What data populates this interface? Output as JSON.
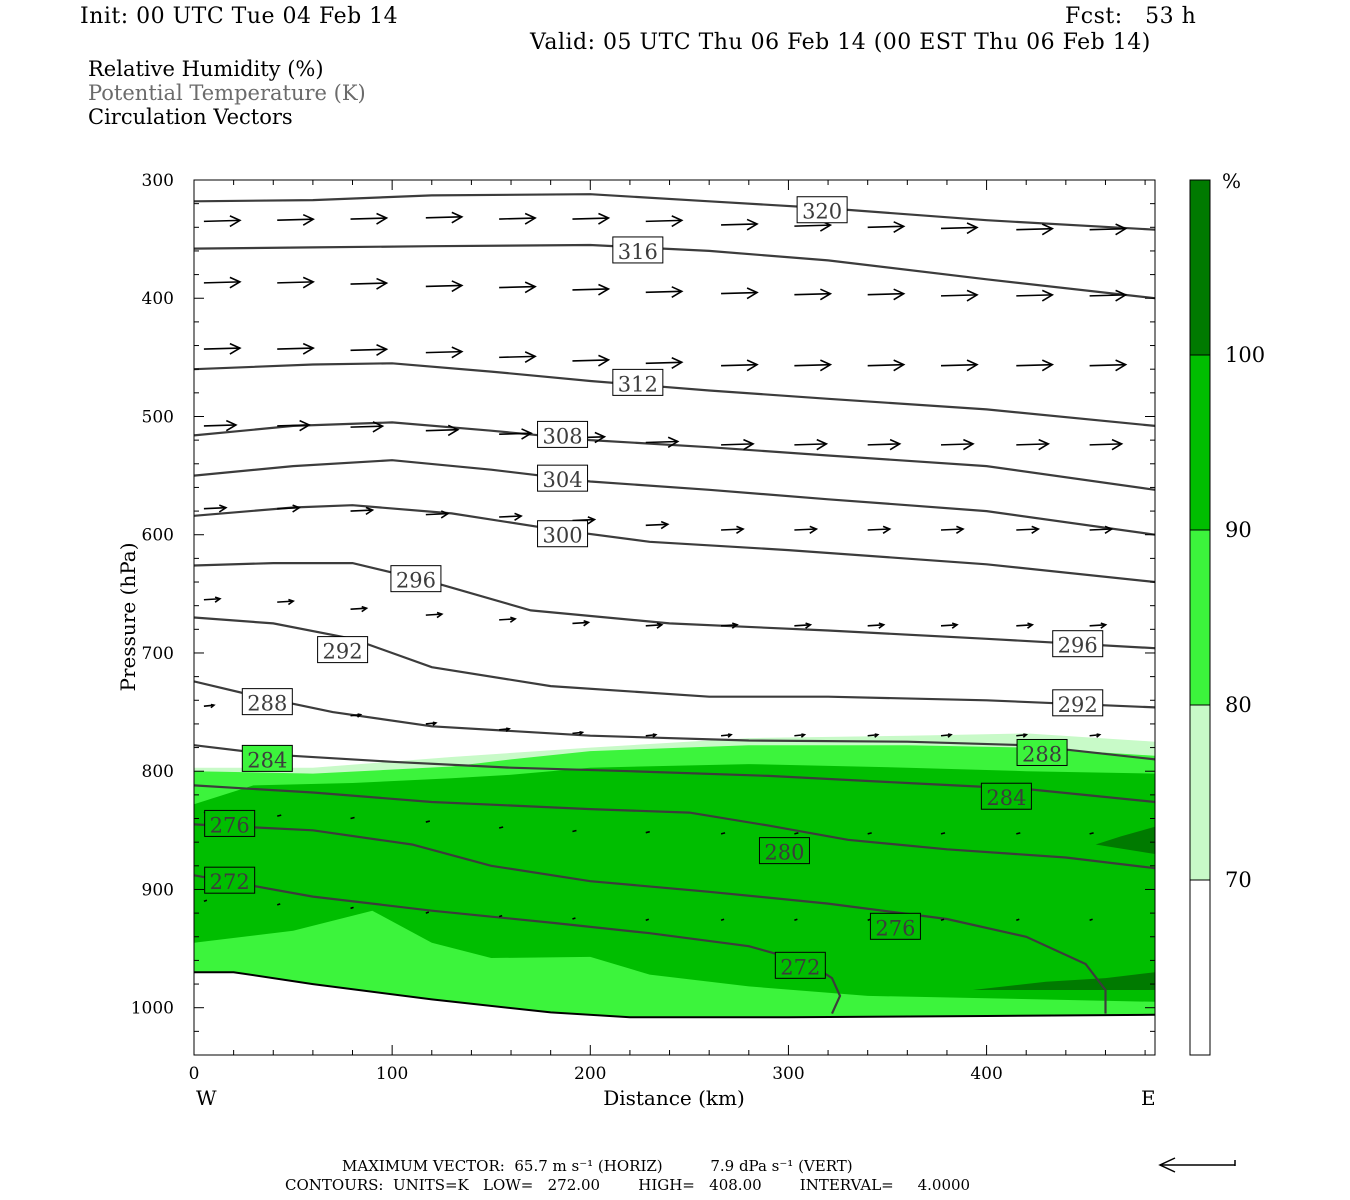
{
  "header": {
    "init": "Init: 00 UTC Tue 04 Feb 14",
    "fcst": "Fcst:   53 h",
    "valid": "Valid: 05 UTC Thu 06 Feb 14 (00 EST Thu 06 Feb 14)"
  },
  "fields": {
    "rh": "Relative Humidity (%)",
    "theta": "Potential Temperature (K)",
    "vectors": "Circulation Vectors"
  },
  "colors": {
    "rh_70": "#c8fac8",
    "rh_80": "#3cf43c",
    "rh_90": "#00be00",
    "rh_100": "#007a00",
    "contour": "#3c3c3c",
    "terrain": "#000000"
  },
  "chart_data": {
    "type": "cross-section",
    "xlabel": "Distance (km)",
    "ylabel": "Pressure (hPa)",
    "xlim": [
      0,
      485
    ],
    "ylim": [
      300,
      1040
    ],
    "y_scale": "linear, inverted",
    "x_ticks": [
      "0",
      "100",
      "200",
      "300",
      "400"
    ],
    "x_tick_values": [
      0,
      100,
      200,
      300,
      400
    ],
    "y_ticks": [
      "300",
      "400",
      "500",
      "600",
      "700",
      "800",
      "900",
      "1000"
    ],
    "y_tick_values": [
      300,
      400,
      500,
      600,
      700,
      800,
      900,
      1000
    ],
    "west_label": "W",
    "east_label": "E",
    "colorbar": {
      "unit": "%",
      "levels": [
        70,
        80,
        90,
        100
      ],
      "labels": [
        "70",
        "80",
        "90",
        "100"
      ]
    },
    "rh_fill": [
      {
        "level": 70,
        "upper": [
          [
            0,
            797
          ],
          [
            60,
            797
          ],
          [
            130,
            788
          ],
          [
            200,
            780
          ],
          [
            280,
            772
          ],
          [
            360,
            770
          ],
          [
            420,
            768
          ],
          [
            485,
            775
          ]
        ]
      },
      {
        "level": 80,
        "upper": [
          [
            0,
            800
          ],
          [
            60,
            802
          ],
          [
            130,
            796
          ],
          [
            160,
            790
          ],
          [
            200,
            783
          ],
          [
            280,
            778
          ],
          [
            360,
            778
          ],
          [
            420,
            780
          ],
          [
            485,
            787
          ]
        ]
      },
      {
        "level": 90,
        "upper": [
          [
            0,
            828
          ],
          [
            30,
            812
          ],
          [
            80,
            810
          ],
          [
            130,
            806
          ],
          [
            160,
            803
          ],
          [
            200,
            797
          ],
          [
            280,
            794
          ],
          [
            360,
            797
          ],
          [
            420,
            800
          ],
          [
            485,
            802
          ]
        ],
        "lower": [
          [
            0,
            945
          ],
          [
            50,
            935
          ],
          [
            90,
            918
          ],
          [
            120,
            945
          ],
          [
            150,
            958
          ],
          [
            200,
            957
          ],
          [
            230,
            972
          ],
          [
            280,
            982
          ],
          [
            340,
            990
          ],
          [
            400,
            992
          ],
          [
            485,
            995
          ]
        ]
      },
      {
        "level": 100,
        "patches": [
          [
            [
              455,
              862
            ],
            [
              468,
              855
            ],
            [
              485,
              847
            ],
            [
              485,
              870
            ]
          ],
          [
            [
              393,
              985
            ],
            [
              430,
              978
            ],
            [
              460,
              975
            ],
            [
              485,
              970
            ],
            [
              485,
              985
            ]
          ]
        ]
      }
    ],
    "theta_contours": [
      {
        "label": "320",
        "points": [
          [
            0,
            318
          ],
          [
            60,
            317
          ],
          [
            120,
            313
          ],
          [
            200,
            312
          ],
          [
            260,
            318
          ],
          [
            320,
            324
          ],
          [
            400,
            334
          ],
          [
            485,
            342
          ]
        ],
        "label_at": [
          317,
          326
        ]
      },
      {
        "label": "316",
        "points": [
          [
            0,
            358
          ],
          [
            60,
            357
          ],
          [
            120,
            356
          ],
          [
            200,
            355
          ],
          [
            260,
            360
          ],
          [
            320,
            368
          ],
          [
            400,
            384
          ],
          [
            485,
            400
          ]
        ],
        "label_at": [
          224,
          360
        ]
      },
      {
        "label": "312",
        "points": [
          [
            0,
            460
          ],
          [
            60,
            456
          ],
          [
            100,
            455
          ],
          [
            150,
            462
          ],
          [
            200,
            470
          ],
          [
            260,
            478
          ],
          [
            320,
            485
          ],
          [
            400,
            494
          ],
          [
            485,
            508
          ]
        ],
        "label_at": [
          224,
          472
        ]
      },
      {
        "label": "308",
        "points": [
          [
            0,
            516
          ],
          [
            50,
            508
          ],
          [
            100,
            505
          ],
          [
            150,
            512
          ],
          [
            200,
            520
          ],
          [
            260,
            526
          ],
          [
            320,
            533
          ],
          [
            400,
            542
          ],
          [
            485,
            562
          ]
        ],
        "label_at": [
          186,
          516
        ]
      },
      {
        "label": "304",
        "points": [
          [
            0,
            550
          ],
          [
            50,
            542
          ],
          [
            100,
            537
          ],
          [
            150,
            545
          ],
          [
            200,
            555
          ],
          [
            260,
            562
          ],
          [
            320,
            570
          ],
          [
            400,
            580
          ],
          [
            485,
            600
          ]
        ],
        "label_at": [
          186,
          553
        ]
      },
      {
        "label": "300",
        "points": [
          [
            0,
            584
          ],
          [
            50,
            577
          ],
          [
            80,
            575
          ],
          [
            130,
            582
          ],
          [
            180,
            595
          ],
          [
            230,
            606
          ],
          [
            300,
            613
          ],
          [
            400,
            625
          ],
          [
            485,
            640
          ]
        ],
        "label_at": [
          186,
          600
        ]
      },
      {
        "label": "296",
        "points": [
          [
            0,
            626
          ],
          [
            40,
            624
          ],
          [
            80,
            624
          ],
          [
            120,
            640
          ],
          [
            170,
            664
          ],
          [
            240,
            675
          ],
          [
            320,
            681
          ],
          [
            400,
            688
          ],
          [
            485,
            696
          ]
        ],
        "label_at": [
          112,
          638
        ]
      },
      {
        "label": "296",
        "points": [],
        "label_at": [
          446,
          693
        ]
      },
      {
        "label": "292",
        "points": [
          [
            0,
            670
          ],
          [
            40,
            675
          ],
          [
            80,
            688
          ],
          [
            120,
            712
          ],
          [
            180,
            728
          ],
          [
            260,
            737
          ],
          [
            320,
            737
          ],
          [
            400,
            740
          ],
          [
            485,
            746
          ]
        ],
        "label_at": [
          75,
          698
        ]
      },
      {
        "label": "292",
        "points": [],
        "label_at": [
          446,
          743
        ]
      },
      {
        "label": "288",
        "points": [
          [
            0,
            724
          ],
          [
            30,
            736
          ],
          [
            70,
            750
          ],
          [
            120,
            762
          ],
          [
            200,
            770
          ],
          [
            280,
            774
          ],
          [
            360,
            775
          ],
          [
            420,
            778
          ],
          [
            485,
            790
          ]
        ],
        "label_at": [
          37,
          742
        ]
      },
      {
        "label": "288",
        "points": [],
        "label_at": [
          428,
          785
        ]
      },
      {
        "label": "284",
        "points": [
          [
            0,
            778
          ],
          [
            40,
            786
          ],
          [
            100,
            792
          ],
          [
            160,
            797
          ],
          [
            220,
            800
          ],
          [
            290,
            804
          ],
          [
            360,
            810
          ],
          [
            420,
            815
          ],
          [
            485,
            826
          ]
        ],
        "label_at": [
          37,
          790
        ]
      },
      {
        "label": "284",
        "points": [],
        "label_at": [
          410,
          822
        ]
      },
      {
        "label": "280",
        "points": [
          [
            0,
            812
          ],
          [
            60,
            818
          ],
          [
            120,
            826
          ],
          [
            200,
            832
          ],
          [
            250,
            835
          ],
          [
            290,
            846
          ],
          [
            330,
            858
          ],
          [
            380,
            866
          ],
          [
            440,
            873
          ],
          [
            485,
            882
          ]
        ],
        "label_at": [
          298,
          868
        ]
      },
      {
        "label": "276",
        "points": [
          [
            0,
            845
          ],
          [
            60,
            850
          ],
          [
            110,
            862
          ],
          [
            150,
            880
          ],
          [
            200,
            893
          ],
          [
            260,
            902
          ],
          [
            320,
            912
          ],
          [
            380,
            925
          ],
          [
            420,
            940
          ],
          [
            450,
            963
          ],
          [
            460,
            985
          ],
          [
            460,
            1005
          ]
        ],
        "label_at": [
          354,
          932
        ]
      },
      {
        "label": "276",
        "points": [],
        "label_at": [
          18,
          845
        ]
      },
      {
        "label": "272",
        "points": [
          [
            0,
            888
          ],
          [
            60,
            906
          ],
          [
            120,
            918
          ],
          [
            180,
            928
          ],
          [
            230,
            937
          ],
          [
            280,
            948
          ],
          [
            310,
            962
          ],
          [
            322,
            975
          ],
          [
            326,
            990
          ],
          [
            322,
            1005
          ]
        ],
        "label_at": [
          306,
          965
        ]
      },
      {
        "label": "272",
        "points": [],
        "label_at": [
          18,
          893
        ]
      }
    ],
    "terrain": [
      [
        0,
        970
      ],
      [
        20,
        970
      ],
      [
        60,
        980
      ],
      [
        120,
        993
      ],
      [
        180,
        1004
      ],
      [
        220,
        1008
      ],
      [
        300,
        1008
      ],
      [
        400,
        1007
      ],
      [
        485,
        1006
      ]
    ],
    "vector_rows": [
      {
        "p": [
          335,
          334,
          333,
          332,
          333,
          333,
          335,
          338,
          339,
          340,
          341,
          342,
          342,
          342,
          342,
          342,
          342,
          342
        ],
        "len": 36
      },
      {
        "p": [
          387,
          387,
          388,
          390,
          391,
          393,
          395,
          396,
          397,
          397,
          398,
          398,
          398,
          398,
          398,
          398,
          398,
          398
        ],
        "len": 36
      },
      {
        "p": [
          443,
          443,
          444,
          446,
          450,
          453,
          455,
          457,
          457,
          457,
          457,
          457,
          457,
          457,
          457,
          457,
          457,
          457
        ],
        "len": 36
      },
      {
        "p": [
          508,
          508,
          509,
          512,
          515,
          518,
          522,
          524,
          524,
          524,
          524,
          524,
          524,
          524,
          524,
          524,
          524,
          524
        ],
        "len": 32
      },
      {
        "p": [
          578,
          578,
          580,
          583,
          585,
          588,
          592,
          596,
          596,
          596,
          596,
          596,
          596,
          596,
          596,
          596,
          596,
          596
        ],
        "len": 22
      },
      {
        "p": [
          655,
          657,
          663,
          668,
          672,
          675,
          677,
          677,
          677,
          677,
          677,
          677,
          677,
          677,
          677,
          677,
          677,
          677
        ],
        "len": 16
      },
      {
        "p": [
          745,
          748,
          753,
          760,
          765,
          768,
          770,
          770,
          770,
          770,
          770,
          770,
          770,
          770,
          770,
          770,
          770,
          770
        ],
        "len": 10
      },
      {
        "p": [
          835,
          838,
          840,
          843,
          848,
          851,
          852,
          853,
          853,
          853,
          853,
          853,
          853,
          853,
          853,
          853,
          853,
          853
        ],
        "len": 4
      },
      {
        "p": [
          910,
          913,
          916,
          920,
          923,
          925,
          926,
          926,
          926,
          926,
          926,
          926,
          926,
          926,
          926,
          926,
          926,
          926
        ],
        "len": 3
      }
    ],
    "vector_x": [
      5,
      42,
      79,
      117,
      154,
      191,
      228,
      266,
      303,
      340,
      377,
      415,
      452,
      485,
      485,
      485,
      485,
      485
    ]
  },
  "footer": {
    "max_vector": "MAXIMUM VECTOR:  65.7 m s⁻¹ (HORIZ)          7.9 dPa s⁻¹ (VERT)",
    "contours": "CONTOURS:  UNITS=K   LOW=   272.00        HIGH=   408.00        INTERVAL=     4.0000"
  }
}
